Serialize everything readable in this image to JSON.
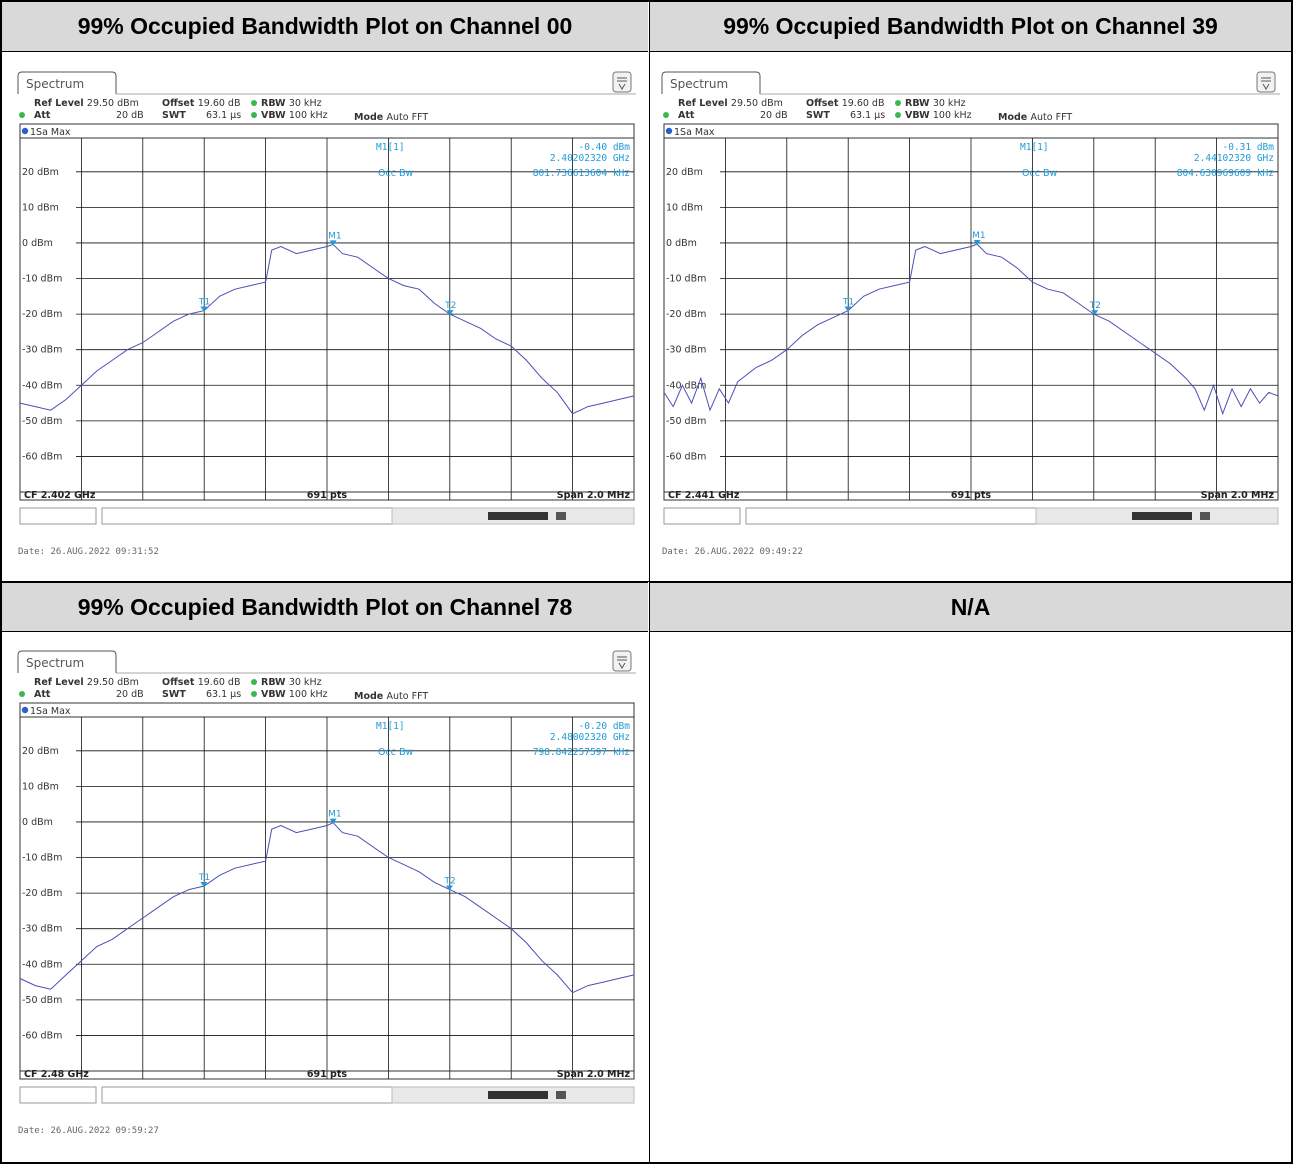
{
  "headers": [
    "99% Occupied Bandwidth Plot on Channel 00",
    "99% Occupied Bandwidth Plot on Channel 39",
    "99% Occupied Bandwidth Plot on Channel 78",
    "N/A"
  ],
  "colors": {
    "header_bg": "#d9d9d9",
    "trace": "#4a4fb8",
    "marker": "#1e9bd7",
    "grid": "#000000"
  },
  "chart_data": [
    {
      "type": "line",
      "tab": "Spectrum",
      "ref_level": "Ref Level 29.50 dBm",
      "att": "Att 20 dB",
      "offset": "Offset 19.60 dB",
      "swt": "SWT 63.1 µs",
      "rbw": "RBW 30 kHz",
      "vbw": "VBW 100 kHz",
      "mode": "Mode Auto FFT",
      "trace_label": "1Sa Max",
      "marker_name": "M1[1]",
      "marker_level": "-0.40 dBm",
      "marker_freq": "2.40202320 GHz",
      "occ_label": "Occ Bw",
      "occ_bw": "801.736613604 kHz",
      "cf": "CF 2.402 GHz",
      "pts": "691 pts",
      "span": "Span 2.0 MHz",
      "date": "Date: 26.AUG.2022  09:31:52",
      "ytick_labels": [
        "20 dBm",
        "10 dBm",
        "0 dBm",
        "-10 dBm",
        "-20 dBm",
        "-30 dBm",
        "-40 dBm",
        "-50 dBm",
        "-60 dBm"
      ],
      "ylim": [
        -70,
        29.5
      ],
      "xlim": [
        -1000,
        1000
      ],
      "x_unit": "kHz offset from CF",
      "markers": [
        {
          "label": "M1",
          "x": 20,
          "y": -0.4
        },
        {
          "label": "T1",
          "x": -401,
          "y": -19
        },
        {
          "label": "T2",
          "x": 401,
          "y": -20
        }
      ],
      "x": [
        -1000,
        -950,
        -900,
        -850,
        -800,
        -750,
        -700,
        -650,
        -600,
        -550,
        -500,
        -450,
        -400,
        -350,
        -300,
        -250,
        -200,
        -180,
        -150,
        -100,
        -50,
        0,
        20,
        50,
        100,
        150,
        200,
        250,
        300,
        350,
        400,
        450,
        500,
        550,
        600,
        650,
        700,
        750,
        800,
        850,
        900,
        950,
        1000
      ],
      "y": [
        -45,
        -46,
        -47,
        -44,
        -40,
        -36,
        -33,
        -30,
        -28,
        -25,
        -22,
        -20,
        -19,
        -15,
        -13,
        -12,
        -11,
        -2,
        -1,
        -3,
        -2,
        -1,
        -0.4,
        -3,
        -4,
        -7,
        -10,
        -12,
        -13,
        -17,
        -20,
        -22,
        -24,
        -27,
        -29,
        -33,
        -38,
        -42,
        -48,
        -46,
        -45,
        -44,
        -43
      ]
    },
    {
      "type": "line",
      "tab": "Spectrum",
      "ref_level": "Ref Level 29.50 dBm",
      "att": "Att 20 dB",
      "offset": "Offset 19.60 dB",
      "swt": "SWT 63.1 µs",
      "rbw": "RBW 30 kHz",
      "vbw": "VBW 100 kHz",
      "mode": "Mode Auto FFT",
      "trace_label": "1Sa Max",
      "marker_name": "M1[1]",
      "marker_level": "-0.31 dBm",
      "marker_freq": "2.44102320 GHz",
      "occ_label": "Occ Bw",
      "occ_bw": "804.630969609 kHz",
      "cf": "CF 2.441 GHz",
      "pts": "691 pts",
      "span": "Span 2.0 MHz",
      "date": "Date: 26.AUG.2022  09:49:22",
      "ytick_labels": [
        "20 dBm",
        "10 dBm",
        "0 dBm",
        "-10 dBm",
        "-20 dBm",
        "-30 dBm",
        "-40 dBm",
        "-50 dBm",
        "-60 dBm"
      ],
      "ylim": [
        -70,
        29.5
      ],
      "xlim": [
        -1000,
        1000
      ],
      "x_unit": "kHz offset from CF",
      "markers": [
        {
          "label": "M1",
          "x": 20,
          "y": -0.31
        },
        {
          "label": "T1",
          "x": -401,
          "y": -19
        },
        {
          "label": "T2",
          "x": 403,
          "y": -20
        }
      ],
      "x": [
        -1000,
        -970,
        -940,
        -910,
        -880,
        -850,
        -820,
        -790,
        -760,
        -730,
        -700,
        -650,
        -600,
        -550,
        -500,
        -450,
        -400,
        -350,
        -300,
        -250,
        -200,
        -180,
        -150,
        -100,
        -50,
        0,
        20,
        50,
        100,
        150,
        200,
        250,
        300,
        350,
        400,
        450,
        500,
        550,
        600,
        650,
        700,
        730,
        760,
        790,
        820,
        850,
        880,
        910,
        940,
        970,
        1000
      ],
      "y": [
        -42,
        -46,
        -40,
        -45,
        -38,
        -47,
        -41,
        -45,
        -39,
        -37,
        -35,
        -33,
        -30,
        -26,
        -23,
        -21,
        -19,
        -15,
        -13,
        -12,
        -11,
        -2,
        -1,
        -3,
        -2,
        -1,
        -0.31,
        -3,
        -4,
        -7,
        -11,
        -13,
        -14,
        -17,
        -20,
        -22,
        -25,
        -28,
        -31,
        -34,
        -38,
        -41,
        -47,
        -40,
        -48,
        -41,
        -46,
        -41,
        -45,
        -42,
        -43
      ]
    },
    {
      "type": "line",
      "tab": "Spectrum",
      "ref_level": "Ref Level 29.50 dBm",
      "att": "Att 20 dB",
      "offset": "Offset 19.60 dB",
      "swt": "SWT 63.1 µs",
      "rbw": "RBW 30 kHz",
      "vbw": "VBW 100 kHz",
      "mode": "Mode Auto FFT",
      "trace_label": "1Sa Max",
      "marker_name": "M1[1]",
      "marker_level": "-0.20 dBm",
      "marker_freq": "2.48002320 GHz",
      "occ_label": "Occ Bw",
      "occ_bw": "798.842257597 kHz",
      "cf": "CF 2.48 GHz",
      "pts": "691 pts",
      "span": "Span 2.0 MHz",
      "date": "Date: 26.AUG.2022  09:59:27",
      "ytick_labels": [
        "20 dBm",
        "10 dBm",
        "0 dBm",
        "-10 dBm",
        "-20 dBm",
        "-30 dBm",
        "-40 dBm",
        "-50 dBm",
        "-60 dBm"
      ],
      "ylim": [
        -70,
        29.5
      ],
      "xlim": [
        -1000,
        1000
      ],
      "x_unit": "kHz offset from CF",
      "markers": [
        {
          "label": "M1",
          "x": 20,
          "y": -0.2
        },
        {
          "label": "T1",
          "x": -401,
          "y": -18
        },
        {
          "label": "T2",
          "x": 399,
          "y": -19
        }
      ],
      "x": [
        -1000,
        -950,
        -900,
        -850,
        -800,
        -750,
        -700,
        -650,
        -600,
        -550,
        -500,
        -450,
        -400,
        -350,
        -300,
        -250,
        -200,
        -180,
        -150,
        -100,
        -50,
        0,
        20,
        50,
        100,
        150,
        200,
        250,
        300,
        350,
        400,
        450,
        500,
        550,
        600,
        650,
        700,
        750,
        800,
        850,
        900,
        950,
        1000
      ],
      "y": [
        -44,
        -46,
        -47,
        -43,
        -39,
        -35,
        -33,
        -30,
        -27,
        -24,
        -21,
        -19,
        -18,
        -15,
        -13,
        -12,
        -11,
        -2,
        -1,
        -3,
        -2,
        -1,
        -0.2,
        -3,
        -4,
        -7,
        -10,
        -12,
        -14,
        -17,
        -19,
        -21,
        -24,
        -27,
        -30,
        -34,
        -39,
        -43,
        -48,
        -46,
        -45,
        -44,
        -43
      ]
    }
  ]
}
